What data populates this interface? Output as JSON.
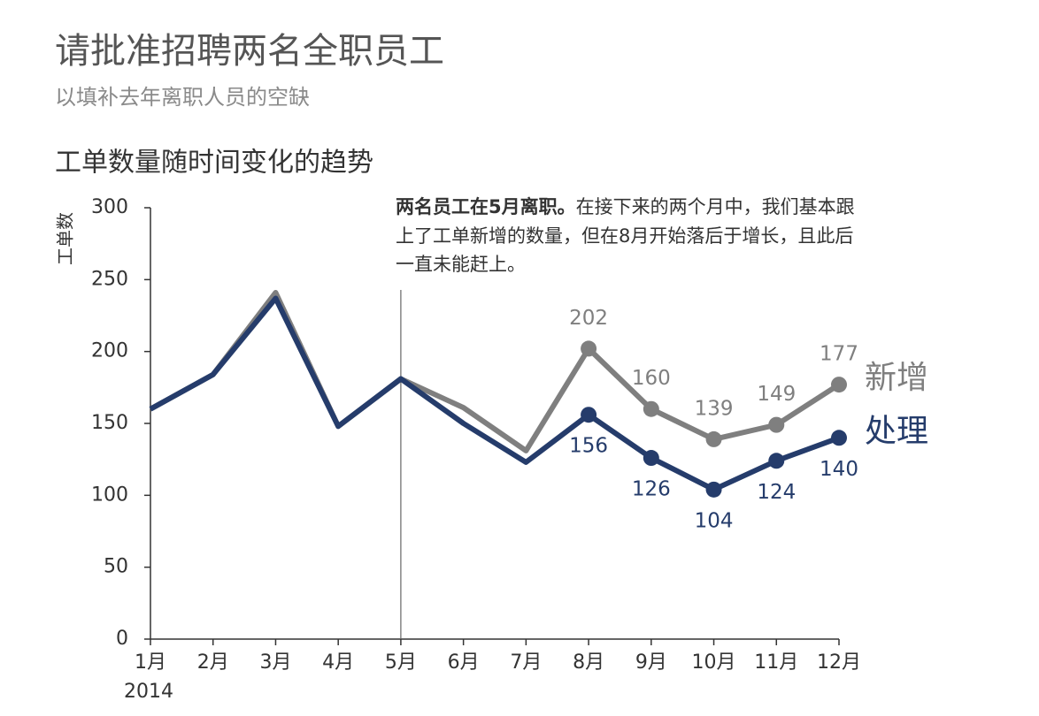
{
  "title": "请批准招聘两名全职员工",
  "subtitle": "以填补去年离职人员的空缺",
  "chart_data": {
    "type": "line",
    "title": "工单数量随时间变化的趋势",
    "y_label": "工单数",
    "year_label": "2014",
    "annotation": {
      "lead": "两名员工在5月离职。",
      "lines": [
        "在接下来的两个月中，我们基本跟",
        "上了工单新增的数量，但在8月开始落后于增长，且此后",
        "一直未能赶上。"
      ]
    },
    "categories": [
      "1月",
      "2月",
      "3月",
      "4月",
      "5月",
      "6月",
      "7月",
      "8月",
      "9月",
      "10月",
      "11月",
      "12月"
    ],
    "series": [
      {
        "name": "新增",
        "color": "#7f7f7f",
        "values": [
          160,
          184,
          241,
          148,
          181,
          161,
          131,
          202,
          160,
          139,
          149,
          177
        ],
        "value_labels": [
          null,
          null,
          null,
          null,
          null,
          null,
          null,
          "202",
          "160",
          "139",
          "149",
          "177"
        ]
      },
      {
        "name": "处理",
        "color": "#253c6b",
        "values": [
          160,
          184,
          237,
          148,
          181,
          150,
          123,
          156,
          126,
          104,
          124,
          140
        ],
        "value_labels": [
          null,
          null,
          null,
          null,
          null,
          null,
          null,
          "156",
          "126",
          "104",
          "124",
          "140"
        ]
      }
    ],
    "ylim": [
      0,
      300
    ],
    "yticks": [
      0,
      50,
      100,
      150,
      200,
      250,
      300
    ]
  }
}
